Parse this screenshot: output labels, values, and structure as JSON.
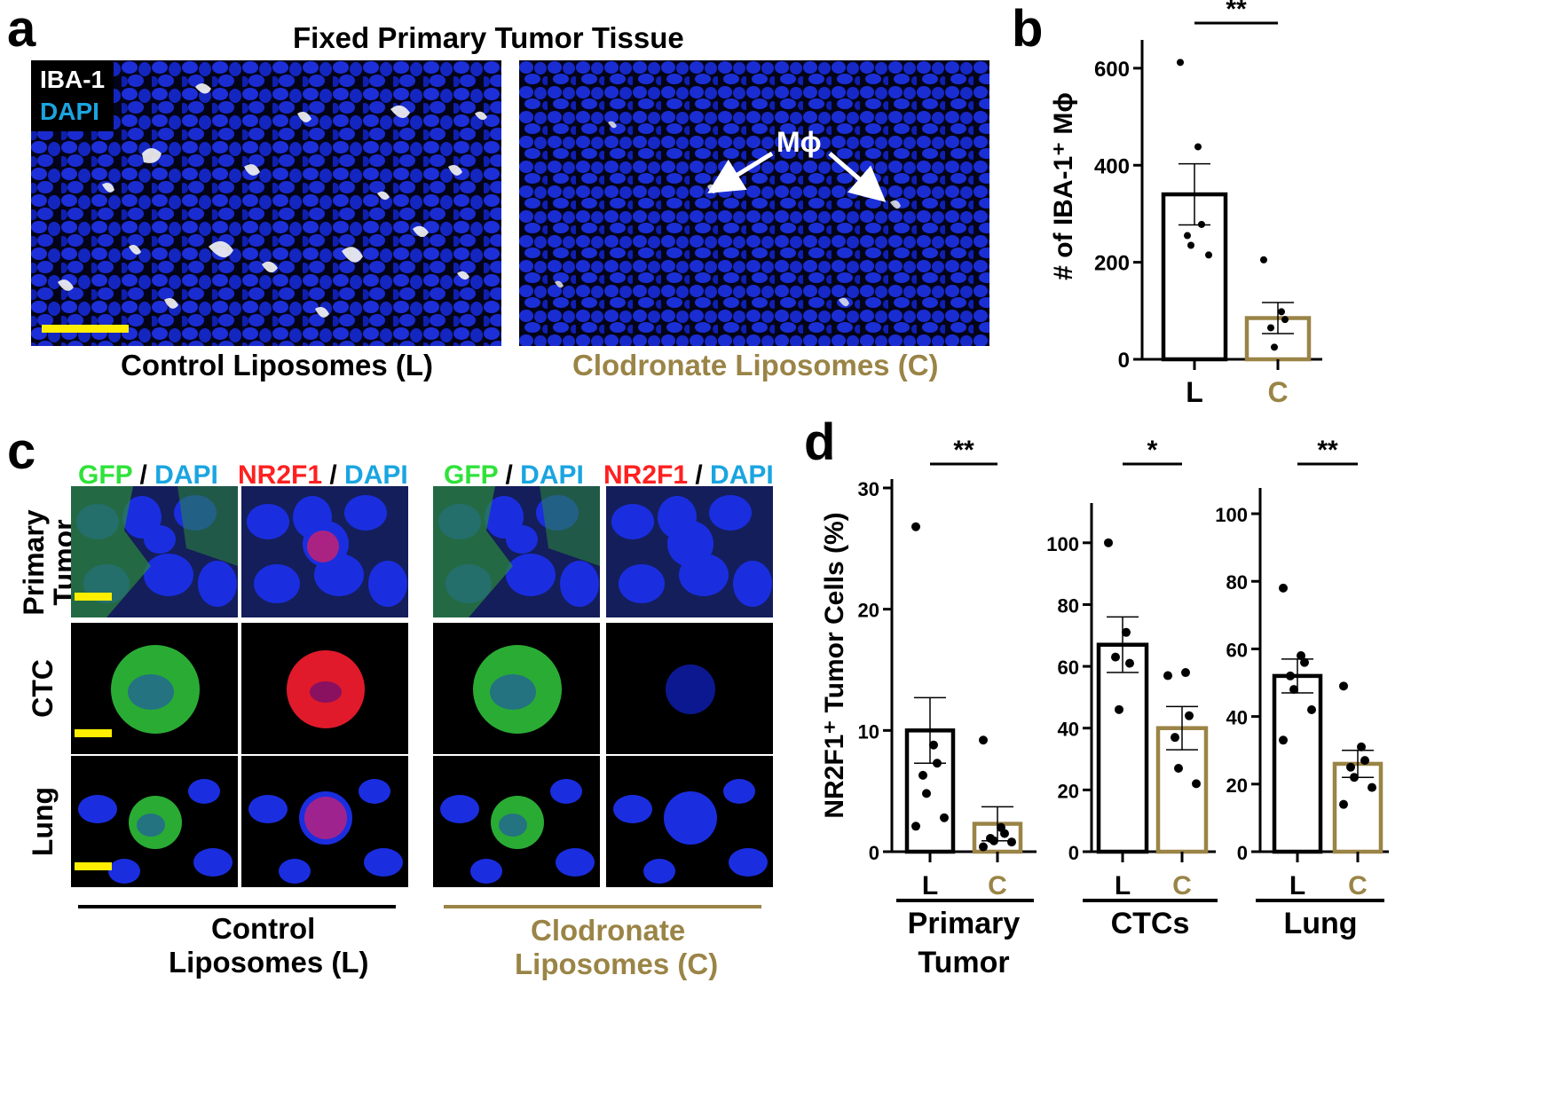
{
  "panel_a": {
    "letter": "a",
    "title": "Fixed Primary Tumor Tissue",
    "legend": {
      "marker1": "IBA-1",
      "marker2": "DAPI"
    },
    "left_caption": "Control Liposomes (L)",
    "right_caption": "Clodronate Liposomes (C)",
    "annotation": "Mϕ",
    "colors": {
      "dapi": "#1020c8",
      "iba1": "#ffffff",
      "scalebar": "#ffee00",
      "clodronate": "#9a8446"
    }
  },
  "panel_c": {
    "letter": "c",
    "headers": {
      "gfp": "GFP",
      "sep": " / ",
      "dapi": "DAPI",
      "nr2f1": "NR2F1"
    },
    "rows": [
      "Primary Tumor",
      "CTC",
      "Lung"
    ],
    "control_label_line1": "Control",
    "control_label_line2": "Liposomes (L)",
    "clodronate_label_line1": "Clodronate",
    "clodronate_label_line2": "Liposomes (C)"
  },
  "panel_d_letter": "d",
  "chart_data": [
    {
      "id": "b",
      "letter": "b",
      "type": "bar",
      "categories": [
        "L",
        "C"
      ],
      "values": [
        340,
        85
      ],
      "sem": [
        63,
        32
      ],
      "points": [
        [
          612,
          438,
          278,
          255,
          235,
          215
        ],
        [
          205,
          98,
          82,
          65,
          25
        ]
      ],
      "ylabel": "# of IBA-1⁺ Mϕ",
      "yticks": [
        0,
        200,
        400,
        600
      ],
      "ylim": [
        0,
        640
      ],
      "significance": "**",
      "colors": [
        "#000000",
        "#9a8446"
      ],
      "group_label": ""
    },
    {
      "id": "d1",
      "type": "bar",
      "categories": [
        "L",
        "C"
      ],
      "values": [
        10,
        2.3
      ],
      "sem": [
        2.7,
        1.4
      ],
      "points": [
        [
          26.8,
          8.8,
          7.3,
          6.3,
          4.8,
          2.8,
          2.1
        ],
        [
          9.2,
          2.0,
          1.5,
          1.1,
          0.9,
          0.8,
          0.4
        ]
      ],
      "ylabel": "NR2F1⁺ Tumor Cells (%)",
      "yticks": [
        0,
        10,
        20,
        30
      ],
      "ylim": [
        0,
        30
      ],
      "significance": "**",
      "colors": [
        "#000000",
        "#9a8446"
      ],
      "group_label_line1": "Primary",
      "group_label_line2": "Tumor"
    },
    {
      "id": "d2",
      "type": "bar",
      "categories": [
        "L",
        "C"
      ],
      "values": [
        67,
        40
      ],
      "sem": [
        9,
        7
      ],
      "points": [
        [
          100,
          71,
          61,
          63,
          46
        ],
        [
          57,
          58,
          44,
          37,
          27,
          22
        ]
      ],
      "ylabel": "",
      "yticks": [
        0,
        20,
        40,
        60,
        80,
        100
      ],
      "ylim": [
        0,
        110
      ],
      "significance": "*",
      "colors": [
        "#000000",
        "#9a8446"
      ],
      "group_label_line1": "CTCs",
      "group_label_line2": ""
    },
    {
      "id": "d3",
      "type": "bar",
      "categories": [
        "L",
        "C"
      ],
      "values": [
        52,
        26
      ],
      "sem": [
        5,
        4
      ],
      "points": [
        [
          78,
          58,
          56,
          52,
          48,
          42,
          33
        ],
        [
          49,
          31,
          27,
          25,
          22,
          19,
          14
        ]
      ],
      "ylabel": "",
      "yticks": [
        0,
        20,
        40,
        60,
        80,
        100
      ],
      "ylim": [
        0,
        105
      ],
      "significance": "**",
      "colors": [
        "#000000",
        "#9a8446"
      ],
      "group_label_line1": "Lung",
      "group_label_line2": ""
    }
  ]
}
